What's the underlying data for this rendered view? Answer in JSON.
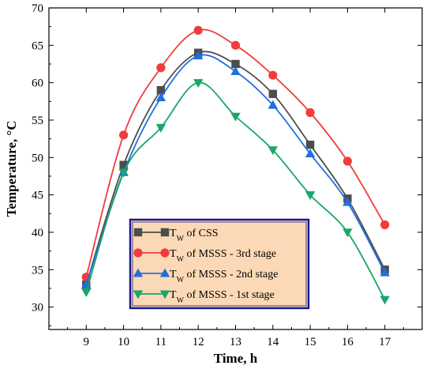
{
  "chart_data": {
    "type": "line",
    "xlabel": "Time, h",
    "ylabel": "Temperature, °C",
    "x": [
      9,
      10,
      11,
      12,
      13,
      14,
      15,
      16,
      17
    ],
    "xlim": [
      8,
      18
    ],
    "ylim": [
      27,
      70
    ],
    "yticks": [
      30,
      35,
      40,
      45,
      50,
      55,
      60,
      65,
      70
    ],
    "x_tick_labels": [
      "9",
      "10",
      "11",
      "12",
      "13",
      "14",
      "15",
      "16",
      "17"
    ],
    "y_tick_labels": [
      "30",
      "35",
      "40",
      "45",
      "50",
      "55",
      "60",
      "65",
      "70"
    ],
    "grid": false,
    "legend_position": "bottom-center",
    "legend_background": "#fcd9b6",
    "legend_border": "#1a1a8c",
    "series": [
      {
        "name": "T",
        "name_subscript": "W",
        "name_suffix": " of CSS",
        "marker": "square",
        "color": "#4d4d4d",
        "values": [
          33,
          49,
          59,
          64,
          62.5,
          58.5,
          51.7,
          44.5,
          35
        ]
      },
      {
        "name": "T",
        "name_subscript": "W",
        "name_suffix": " of MSSS - 3rd stage",
        "marker": "circle",
        "color": "#f03c3c",
        "values": [
          34,
          53,
          62,
          67,
          65,
          61,
          56,
          49.5,
          41
        ]
      },
      {
        "name": "T",
        "name_subscript": "W",
        "name_suffix": " of MSSS - 2nd stage",
        "marker": "triangle-up",
        "color": "#1f6fe0",
        "values": [
          33,
          48,
          58,
          63.6,
          61.5,
          57,
          50.5,
          44,
          34.6
        ]
      },
      {
        "name": "T",
        "name_subscript": "W",
        "name_suffix": " of MSSS - 1st stage",
        "marker": "triangle-down",
        "color": "#1aa66a",
        "values": [
          32,
          48,
          54,
          60,
          55.5,
          51,
          45,
          40,
          31
        ]
      }
    ]
  }
}
